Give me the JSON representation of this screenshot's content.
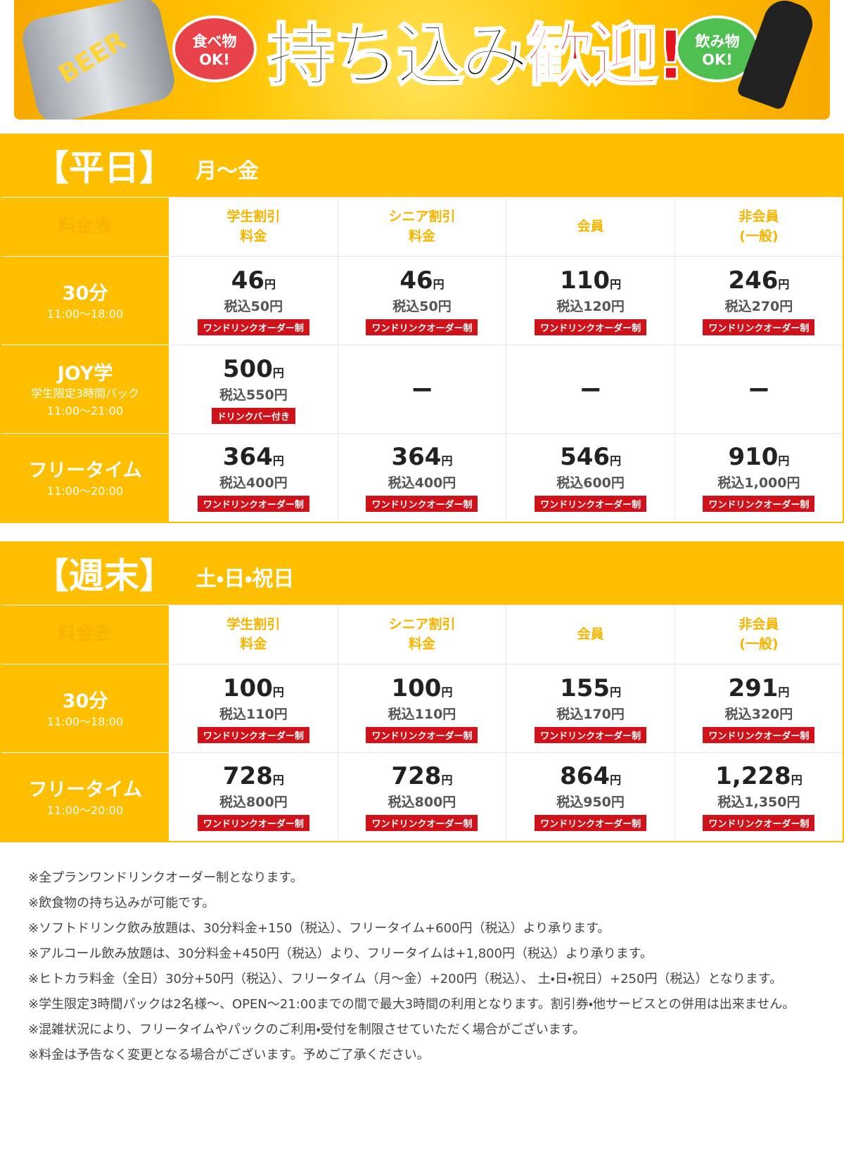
{
  "banner": {
    "left_bubble": "食べ物\nOK!",
    "title_main": "持ち込み",
    "title_accent": "歓迎!",
    "right_bubble": "飲み物\nOK!",
    "can_label": "BEER"
  },
  "sections": [
    {
      "heading": "【平日】",
      "days": "月〜金",
      "header": [
        "料金表",
        "学生割引\n料金",
        "シニア割引\n料金",
        "会員",
        "非会員\n(一般)"
      ],
      "rows": [
        {
          "label": "30分",
          "time": "11:00〜18:00",
          "cells": [
            {
              "price": "46",
              "unit": "円",
              "tax": "税込50円",
              "badge": "ワンドリンクオーダー制"
            },
            {
              "price": "46",
              "unit": "円",
              "tax": "税込50円",
              "badge": "ワンドリンクオーダー制"
            },
            {
              "price": "110",
              "unit": "円",
              "tax": "税込120円",
              "badge": "ワンドリンクオーダー制"
            },
            {
              "price": "246",
              "unit": "円",
              "tax": "税込270円",
              "badge": "ワンドリンクオーダー制"
            }
          ]
        },
        {
          "label": "JOY学",
          "note": "学生限定3時間パック",
          "time": "11:00〜21:00",
          "cells": [
            {
              "price": "500",
              "unit": "円",
              "tax": "税込550円",
              "badge": "ドリンクバー付き"
            },
            {
              "dash": "−"
            },
            {
              "dash": "−"
            },
            {
              "dash": "−"
            }
          ]
        },
        {
          "label": "フリータイム",
          "time": "11:00〜20:00",
          "cells": [
            {
              "price": "364",
              "unit": "円",
              "tax": "税込400円",
              "badge": "ワンドリンクオーダー制"
            },
            {
              "price": "364",
              "unit": "円",
              "tax": "税込400円",
              "badge": "ワンドリンクオーダー制"
            },
            {
              "price": "546",
              "unit": "円",
              "tax": "税込600円",
              "badge": "ワンドリンクオーダー制"
            },
            {
              "price": "910",
              "unit": "円",
              "tax": "税込1,000円",
              "badge": "ワンドリンクオーダー制"
            }
          ]
        }
      ]
    },
    {
      "heading": "【週末】",
      "days": "土・日・祝日",
      "header": [
        "料金表",
        "学生割引\n料金",
        "シニア割引\n料金",
        "会員",
        "非会員\n(一般)"
      ],
      "rows": [
        {
          "label": "30分",
          "time": "11:00〜18:00",
          "cells": [
            {
              "price": "100",
              "unit": "円",
              "tax": "税込110円",
              "badge": "ワンドリンクオーダー制"
            },
            {
              "price": "100",
              "unit": "円",
              "tax": "税込110円",
              "badge": "ワンドリンクオーダー制"
            },
            {
              "price": "155",
              "unit": "円",
              "tax": "税込170円",
              "badge": "ワンドリンクオーダー制"
            },
            {
              "price": "291",
              "unit": "円",
              "tax": "税込320円",
              "badge": "ワンドリンクオーダー制"
            }
          ]
        },
        {
          "label": "フリータイム",
          "time": "11:00〜20:00",
          "cells": [
            {
              "price": "728",
              "unit": "円",
              "tax": "税込800円",
              "badge": "ワンドリンクオーダー制"
            },
            {
              "price": "728",
              "unit": "円",
              "tax": "税込800円",
              "badge": "ワンドリンクオーダー制"
            },
            {
              "price": "864",
              "unit": "円",
              "tax": "税込950円",
              "badge": "ワンドリンクオーダー制"
            },
            {
              "price": "1,228",
              "unit": "円",
              "tax": "税込1,350円",
              "badge": "ワンドリンクオーダー制"
            }
          ]
        }
      ]
    }
  ],
  "notes": [
    "※全プランワンドリンクオーダー制となります。",
    "※飲食物の持ち込みが可能です。",
    "※ソフトドリンク飲み放題は、30分料金+150（税込）、フリータイム+600円（税込）より承ります。",
    "※アルコール飲み放題は、30分料金+450円（税込）より、フリータイムは+1,800円（税込）より承ります。",
    "※ヒトカラ料金（全日）30分+50円（税込）、フリータイム（月〜金）+200円（税込）、 土・日・祝日）+250円（税込）となります。",
    "※学生限定3時間パックは2名様〜、OPEN〜21:00までの間で最大3時間の利用となります。割引券・他サービスとの併用は出来ません。",
    "※混雑状況により、フリータイムやパックのご利用・受付を制限させていただく場合がございます。",
    "※料金は予告なく変更となる場合がございます。予めご了承ください。"
  ]
}
